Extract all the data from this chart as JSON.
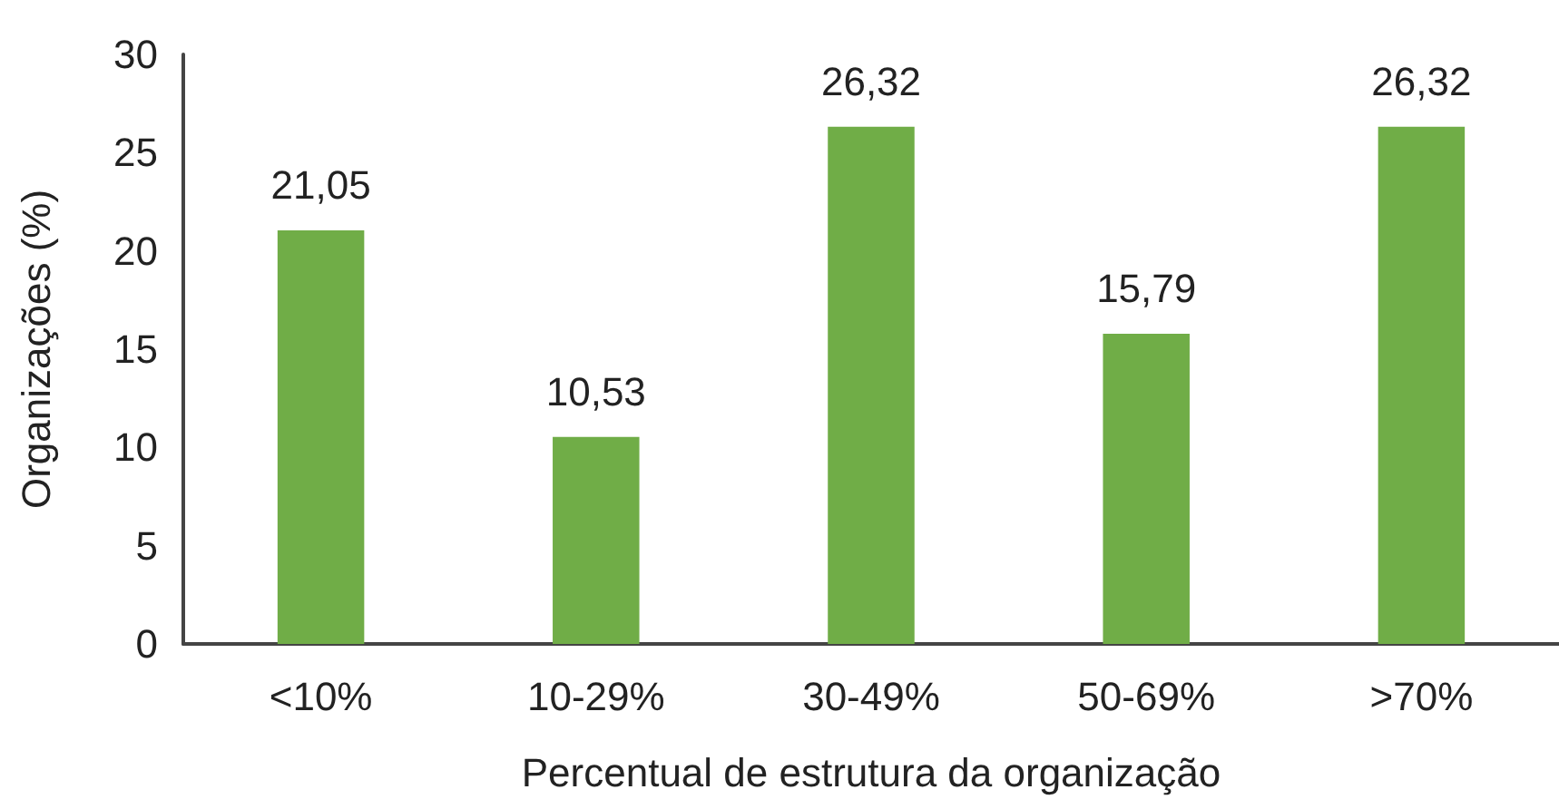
{
  "chart_data": {
    "type": "bar",
    "categories": [
      "<10%",
      "10-29%",
      "30-49%",
      "50-69%",
      ">70%"
    ],
    "values": [
      21.05,
      10.53,
      26.32,
      15.79,
      26.32
    ],
    "value_labels": [
      "21,05",
      "10,53",
      "26,32",
      "15,79",
      "26,32"
    ],
    "color": "#70ad47",
    "xlabel": "Percentual de estrutura da organização",
    "ylabel": "Organizações (%)",
    "ylim": [
      0,
      30
    ],
    "yticks": [
      0,
      5,
      10,
      15,
      20,
      25,
      30
    ],
    "grid": false
  }
}
